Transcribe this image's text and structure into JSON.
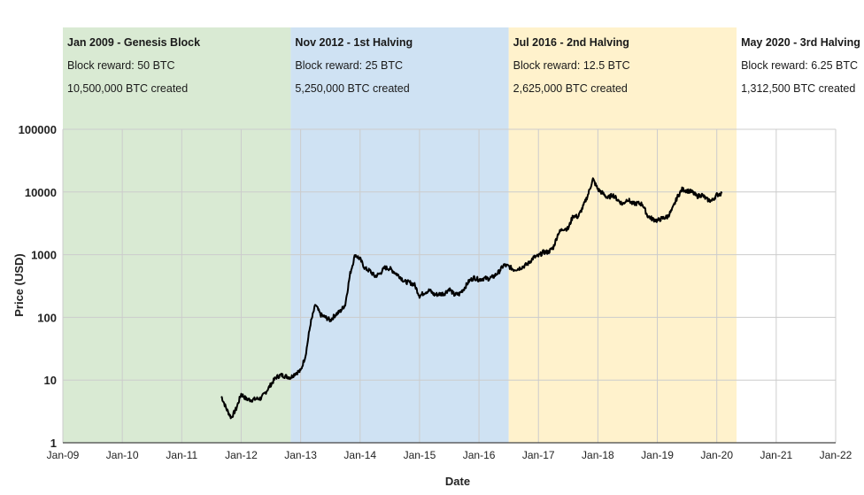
{
  "chart_data": {
    "type": "line",
    "xlabel": "Date",
    "ylabel": "Price (USD)",
    "y_scale": "log",
    "ylim": [
      1,
      100000
    ],
    "xlim": [
      "2009-01",
      "2022-01"
    ],
    "y_ticks": [
      "1",
      "10",
      "100",
      "1000",
      "10000",
      "100000"
    ],
    "x_ticks": [
      {
        "date": "2009-01",
        "label": "Jan-09"
      },
      {
        "date": "2010-01",
        "label": "Jan-10"
      },
      {
        "date": "2011-01",
        "label": "Jan-11"
      },
      {
        "date": "2012-01",
        "label": "Jan-12"
      },
      {
        "date": "2013-01",
        "label": "Jan-13"
      },
      {
        "date": "2014-01",
        "label": "Jan-14"
      },
      {
        "date": "2015-01",
        "label": "Jan-15"
      },
      {
        "date": "2016-01",
        "label": "Jan-16"
      },
      {
        "date": "2017-01",
        "label": "Jan-17"
      },
      {
        "date": "2018-01",
        "label": "Jan-18"
      },
      {
        "date": "2019-01",
        "label": "Jan-19"
      },
      {
        "date": "2020-01",
        "label": "Jan-20"
      },
      {
        "date": "2021-01",
        "label": "Jan-21"
      },
      {
        "date": "2022-01",
        "label": "Jan-22"
      }
    ],
    "grid": true,
    "eras": [
      {
        "start": "2009-01",
        "end": "2012-11",
        "color": "#d9ead3",
        "title": "Jan 2009 - Genesis Block",
        "reward": "Block reward: 50 BTC",
        "created": "10,500,000 BTC created"
      },
      {
        "start": "2012-11",
        "end": "2016-07",
        "color": "#cfe2f3",
        "title": "Nov 2012 - 1st Halving",
        "reward": "Block reward: 25 BTC",
        "created": "5,250,000 BTC created"
      },
      {
        "start": "2016-07",
        "end": "2020-05",
        "color": "#fff2cc",
        "title": "Jul 2016 - 2nd Halving",
        "reward": "Block reward: 12.5 BTC",
        "created": "2,625,000 BTC created"
      },
      {
        "start": "2020-05",
        "end": "2022-01",
        "color": "#ffffff",
        "title": "May 2020 - 3rd Halving",
        "reward": "Block reward: 6.25 BTC",
        "created": "1,312,500 BTC created"
      }
    ],
    "series": [
      {
        "color": "#000000",
        "points": [
          [
            "2011-09",
            5.5
          ],
          [
            "2011-10",
            3.5
          ],
          [
            "2011-11",
            2.5
          ],
          [
            "2011-12",
            3.5
          ],
          [
            "2012-01",
            6.0
          ],
          [
            "2012-02",
            5.0
          ],
          [
            "2012-03",
            4.8
          ],
          [
            "2012-04",
            5.0
          ],
          [
            "2012-05",
            5.1
          ],
          [
            "2012-06",
            6.5
          ],
          [
            "2012-07",
            8.5
          ],
          [
            "2012-08",
            11.0
          ],
          [
            "2012-09",
            12.0
          ],
          [
            "2012-10",
            11.5
          ],
          [
            "2012-11",
            11.0
          ],
          [
            "2012-12",
            13.0
          ],
          [
            "2013-01",
            14.0
          ],
          [
            "2013-02",
            25.0
          ],
          [
            "2013-03",
            80.0
          ],
          [
            "2013-04",
            160.0
          ],
          [
            "2013-05",
            110.0
          ],
          [
            "2013-06",
            100.0
          ],
          [
            "2013-07",
            90.0
          ],
          [
            "2013-08",
            110.0
          ],
          [
            "2013-09",
            125.0
          ],
          [
            "2013-10",
            160.0
          ],
          [
            "2013-11",
            500.0
          ],
          [
            "2013-12",
            1000.0
          ],
          [
            "2014-01",
            850.0
          ],
          [
            "2014-02",
            600.0
          ],
          [
            "2014-03",
            550.0
          ],
          [
            "2014-04",
            450.0
          ],
          [
            "2014-05",
            500.0
          ],
          [
            "2014-06",
            620.0
          ],
          [
            "2014-07",
            600.0
          ],
          [
            "2014-08",
            520.0
          ],
          [
            "2014-09",
            450.0
          ],
          [
            "2014-10",
            370.0
          ],
          [
            "2014-11",
            360.0
          ],
          [
            "2014-12",
            330.0
          ],
          [
            "2015-01",
            220.0
          ],
          [
            "2015-02",
            250.0
          ],
          [
            "2015-03",
            270.0
          ],
          [
            "2015-04",
            230.0
          ],
          [
            "2015-05",
            235.0
          ],
          [
            "2015-06",
            240.0
          ],
          [
            "2015-07",
            285.0
          ],
          [
            "2015-08",
            230.0
          ],
          [
            "2015-09",
            235.0
          ],
          [
            "2015-10",
            290.0
          ],
          [
            "2015-11",
            380.0
          ],
          [
            "2015-12",
            430.0
          ],
          [
            "2016-01",
            400.0
          ],
          [
            "2016-02",
            420.0
          ],
          [
            "2016-03",
            415.0
          ],
          [
            "2016-04",
            450.0
          ],
          [
            "2016-05",
            530.0
          ],
          [
            "2016-06",
            680.0
          ],
          [
            "2016-07",
            650.0
          ],
          [
            "2016-08",
            580.0
          ],
          [
            "2016-09",
            600.0
          ],
          [
            "2016-10",
            650.0
          ],
          [
            "2016-11",
            730.0
          ],
          [
            "2016-12",
            900.0
          ],
          [
            "2017-01",
            950.0
          ],
          [
            "2017-02",
            1100.0
          ],
          [
            "2017-03",
            1100.0
          ],
          [
            "2017-04",
            1300.0
          ],
          [
            "2017-05",
            2200.0
          ],
          [
            "2017-06",
            2600.0
          ],
          [
            "2017-07",
            2600.0
          ],
          [
            "2017-08",
            4200.0
          ],
          [
            "2017-09",
            4000.0
          ],
          [
            "2017-10",
            5800.0
          ],
          [
            "2017-11",
            9000.0
          ],
          [
            "2017-12",
            16000.0
          ],
          [
            "2018-01",
            11000.0
          ],
          [
            "2018-02",
            9500.0
          ],
          [
            "2018-03",
            8000.0
          ],
          [
            "2018-04",
            9000.0
          ],
          [
            "2018-05",
            7500.0
          ],
          [
            "2018-06",
            6400.0
          ],
          [
            "2018-07",
            7700.0
          ],
          [
            "2018-08",
            6500.0
          ],
          [
            "2018-09",
            6600.0
          ],
          [
            "2018-10",
            6400.0
          ],
          [
            "2018-11",
            4200.0
          ],
          [
            "2018-12",
            3700.0
          ],
          [
            "2019-01",
            3500.0
          ],
          [
            "2019-02",
            3800.0
          ],
          [
            "2019-03",
            4000.0
          ],
          [
            "2019-04",
            5200.0
          ],
          [
            "2019-05",
            8200.0
          ],
          [
            "2019-06",
            11000.0
          ],
          [
            "2019-07",
            10500.0
          ],
          [
            "2019-08",
            10000.0
          ],
          [
            "2019-09",
            8500.0
          ],
          [
            "2019-10",
            9000.0
          ],
          [
            "2019-11",
            7600.0
          ],
          [
            "2019-12",
            7200.0
          ],
          [
            "2020-01",
            9000.0
          ],
          [
            "2020-02",
            9500.0
          ]
        ]
      }
    ]
  }
}
